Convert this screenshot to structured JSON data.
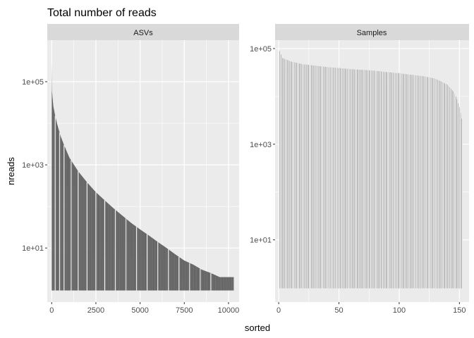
{
  "chart_data": {
    "type": "bar",
    "title": "Total number of reads",
    "xlabel": "sorted",
    "ylabel": "nreads",
    "colors": {
      "bar": "#595959",
      "panel_bg": "#ebebeb",
      "strip_bg": "#d9d9d9",
      "grid": "#ffffff"
    },
    "yscale": "log10",
    "panels": [
      {
        "strip": "ASVs",
        "xlim": [
          -250,
          10600
        ],
        "ylim": [
          0.5,
          1000000
        ],
        "xticks": [
          0,
          2500,
          5000,
          7500,
          10000
        ],
        "xtick_labels": [
          "0",
          "2500",
          "5000",
          "7500",
          "10000"
        ],
        "yticks": [
          10,
          1000,
          100000
        ],
        "ytick_labels": [
          "1e+01",
          "1e+03",
          "1e+05"
        ],
        "n_bars": 10300,
        "curve": [
          [
            1,
            300000
          ],
          [
            5,
            200000
          ],
          [
            20,
            60000
          ],
          [
            50,
            40000
          ],
          [
            100,
            25000
          ],
          [
            200,
            15000
          ],
          [
            300,
            10000
          ],
          [
            500,
            5000
          ],
          [
            700,
            3000
          ],
          [
            1000,
            1500
          ],
          [
            1500,
            700
          ],
          [
            2000,
            380
          ],
          [
            2500,
            220
          ],
          [
            3000,
            140
          ],
          [
            3500,
            90
          ],
          [
            4000,
            60
          ],
          [
            4500,
            40
          ],
          [
            5000,
            28
          ],
          [
            5500,
            20
          ],
          [
            6000,
            14
          ],
          [
            6500,
            10
          ],
          [
            7000,
            7
          ],
          [
            7500,
            5
          ],
          [
            8000,
            4
          ],
          [
            8500,
            3
          ],
          [
            9000,
            2.5
          ],
          [
            9500,
            2
          ],
          [
            10300,
            2
          ]
        ]
      },
      {
        "strip": "Samples",
        "xlim": [
          -3,
          158
        ],
        "ylim": [
          0.5,
          150000
        ],
        "xticks": [
          0,
          50,
          100,
          150
        ],
        "xtick_labels": [
          "0",
          "50",
          "100",
          "150"
        ],
        "yticks": [
          10,
          1000,
          100000
        ],
        "ytick_labels": [
          "1e+01",
          "1e+03",
          "1e+05"
        ],
        "n_bars": 152,
        "curve": [
          [
            1,
            90000
          ],
          [
            3,
            65000
          ],
          [
            10,
            55000
          ],
          [
            20,
            48000
          ],
          [
            40,
            42000
          ],
          [
            60,
            38000
          ],
          [
            80,
            35000
          ],
          [
            100,
            31000
          ],
          [
            120,
            27000
          ],
          [
            130,
            24000
          ],
          [
            140,
            18000
          ],
          [
            145,
            13000
          ],
          [
            148,
            9000
          ],
          [
            150,
            6000
          ],
          [
            152,
            3500
          ]
        ]
      }
    ]
  }
}
